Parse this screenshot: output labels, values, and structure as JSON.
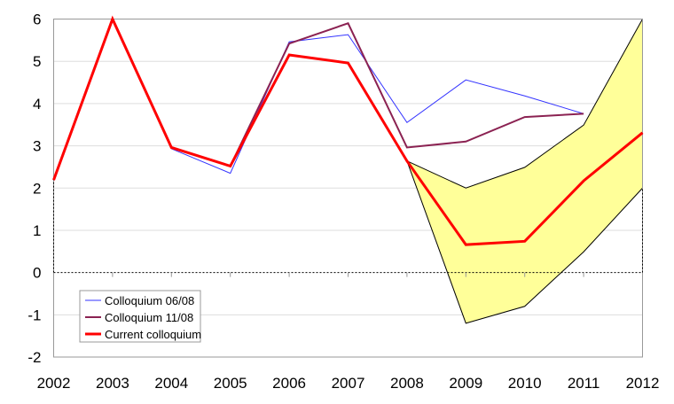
{
  "chart_data": {
    "type": "line",
    "title": "",
    "xlabel": "",
    "ylabel": "",
    "x": [
      "2002",
      "2003",
      "2004",
      "2005",
      "2006",
      "2007",
      "2008",
      "2009",
      "2010",
      "2011",
      "2012"
    ],
    "ylim": [
      -2,
      6
    ],
    "yticks": [
      "-2",
      "-1",
      "0",
      "1",
      "2",
      "3",
      "4",
      "5",
      "6"
    ],
    "grid": "horizontal",
    "legend_position": "bottom-left",
    "series": [
      {
        "name": "Colloquium 06/08",
        "color": "#3333ff",
        "values": [
          2.19,
          6.0,
          2.93,
          2.35,
          5.46,
          5.63,
          3.55,
          4.56,
          4.18,
          3.76,
          null
        ]
      },
      {
        "name": "Colloquium 11/08",
        "color": "#8b2252",
        "values": [
          2.19,
          6.0,
          2.96,
          2.52,
          5.42,
          5.9,
          2.96,
          3.1,
          3.68,
          3.76,
          null
        ]
      },
      {
        "name": "Current colloquium",
        "color": "#ff0000",
        "values": [
          2.19,
          6.0,
          2.96,
          2.52,
          5.15,
          4.96,
          2.64,
          0.66,
          0.74,
          2.17,
          3.31
        ]
      }
    ],
    "band": {
      "color": "#ffff99",
      "upper": [
        null,
        null,
        null,
        null,
        null,
        null,
        2.64,
        2.0,
        2.49,
        3.49,
        6.0
      ],
      "lower": [
        null,
        null,
        null,
        null,
        null,
        null,
        2.64,
        -1.2,
        -0.8,
        0.49,
        2.0
      ]
    }
  }
}
